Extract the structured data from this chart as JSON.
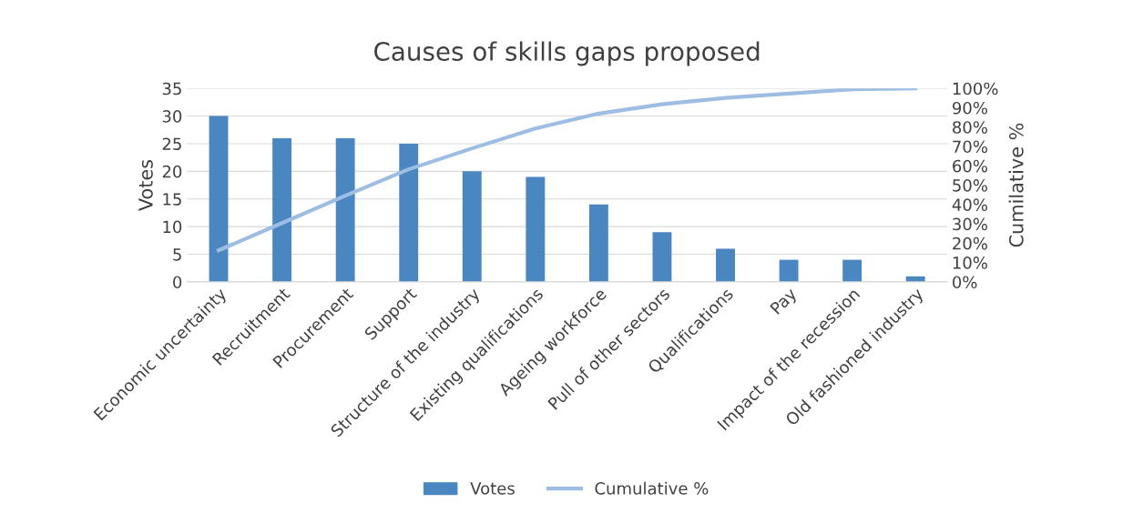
{
  "chart_data": {
    "type": "bar",
    "title": "Causes of skills gaps proposed",
    "categories": [
      "Economic uncertainty",
      "Recruitment",
      "Procurement",
      "Support",
      "Structure of the industry",
      "Existing qualifications",
      "Ageing workforce",
      "Pull of other sectors",
      "Qualifications",
      "Pay",
      "Impact of the recession",
      "Old fashioned industry"
    ],
    "series": [
      {
        "name": "Votes",
        "color": "#4a86c0",
        "values": [
          30,
          26,
          26,
          25,
          20,
          19,
          14,
          9,
          6,
          4,
          4,
          1
        ]
      },
      {
        "name": "Cumulative %",
        "type": "line",
        "axis": "y2",
        "color": "#9dbde3",
        "values": [
          16.3,
          30.4,
          44.6,
          58.2,
          69.0,
          79.3,
          87.0,
          91.8,
          95.1,
          97.3,
          99.5,
          100
        ]
      }
    ],
    "ylabel": "Votes",
    "y2label": "Cumilative %",
    "ylim": [
      0,
      35
    ],
    "yticks": [
      0,
      5,
      10,
      15,
      20,
      25,
      30,
      35
    ],
    "y2lim": [
      0,
      100
    ],
    "y2ticks": [
      {
        "value": 0,
        "label": "0%"
      },
      {
        "value": 10,
        "label": "10%"
      },
      {
        "value": 20,
        "label": "20%"
      },
      {
        "value": 30,
        "label": "30%"
      },
      {
        "value": 40,
        "label": "40%"
      },
      {
        "value": 50,
        "label": "50%"
      },
      {
        "value": 60,
        "label": "60%"
      },
      {
        "value": 70,
        "label": "70%"
      },
      {
        "value": 80,
        "label": "80%"
      },
      {
        "value": 90,
        "label": "90%"
      },
      {
        "value": 100,
        "label": "100%"
      }
    ],
    "grid": "y",
    "legend": "bottom"
  }
}
